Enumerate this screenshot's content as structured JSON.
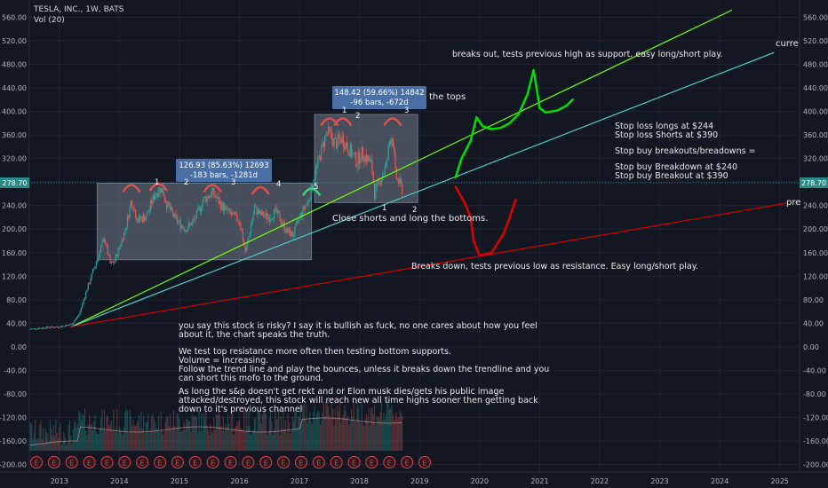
{
  "header": {
    "title": "TESLA, INC., 1W, BATS",
    "volume_label": "Vol (20)"
  },
  "price_tag": {
    "value": 278.7,
    "label": "278.70"
  },
  "chart_data": {
    "type": "candlestick",
    "x_tick_labels": [
      "2013",
      "2014",
      "2015",
      "2016",
      "2017",
      "2018",
      "2019",
      "2020",
      "2021",
      "2022",
      "2023",
      "2024",
      "2025"
    ],
    "y_tick_values": [
      560,
      520,
      480,
      440,
      400,
      360,
      320,
      280,
      240,
      200,
      160,
      120,
      80,
      40,
      0,
      -40,
      -80,
      -120,
      -160,
      -200
    ],
    "y_tick_labels": [
      "560.00",
      "520.00",
      "480.00",
      "440.00",
      "400.00",
      "360.00",
      "320.00",
      "280.00",
      "240.00",
      "200.00",
      "160.00",
      "120.00",
      "80.00",
      "40.00",
      "0.00",
      "-40.00",
      "-80.00",
      "-120.00",
      "-160.00",
      "-200.00"
    ],
    "ylim": [
      -210,
      572
    ],
    "price_path": [
      [
        2012.5,
        30
      ],
      [
        2012.8,
        33
      ],
      [
        2013.0,
        34
      ],
      [
        2013.2,
        38
      ],
      [
        2013.33,
        55
      ],
      [
        2013.45,
        95
      ],
      [
        2013.6,
        140
      ],
      [
        2013.75,
        185
      ],
      [
        2013.85,
        140
      ],
      [
        2013.92,
        145
      ],
      [
        2014.1,
        200
      ],
      [
        2014.2,
        250
      ],
      [
        2014.3,
        215
      ],
      [
        2014.45,
        222
      ],
      [
        2014.6,
        262
      ],
      [
        2014.7,
        270
      ],
      [
        2014.8,
        240
      ],
      [
        2014.95,
        215
      ],
      [
        2015.1,
        200
      ],
      [
        2015.25,
        215
      ],
      [
        2015.4,
        250
      ],
      [
        2015.55,
        262
      ],
      [
        2015.7,
        240
      ],
      [
        2015.85,
        225
      ],
      [
        2016.0,
        215
      ],
      [
        2016.1,
        160
      ],
      [
        2016.25,
        235
      ],
      [
        2016.35,
        225
      ],
      [
        2016.5,
        220
      ],
      [
        2016.6,
        230
      ],
      [
        2016.8,
        195
      ],
      [
        2016.9,
        190
      ],
      [
        2017.0,
        220
      ],
      [
        2017.15,
        250
      ],
      [
        2017.3,
        310
      ],
      [
        2017.45,
        365
      ],
      [
        2017.5,
        360
      ],
      [
        2017.6,
        345
      ],
      [
        2017.7,
        355
      ],
      [
        2017.8,
        340
      ],
      [
        2017.95,
        315
      ],
      [
        2018.05,
        330
      ],
      [
        2018.2,
        310
      ],
      [
        2018.25,
        260
      ],
      [
        2018.35,
        285
      ],
      [
        2018.45,
        310
      ],
      [
        2018.5,
        350
      ],
      [
        2018.55,
        360
      ],
      [
        2018.6,
        290
      ],
      [
        2018.68,
        275
      ],
      [
        2018.72,
        265
      ]
    ],
    "series": [
      {
        "name": "channel-upper",
        "points": [
          [
            2014.0,
            278
          ],
          [
            2018.97,
            278
          ]
        ]
      },
      {
        "name": "channel-lower",
        "points": [
          [
            2014.0,
            148
          ],
          [
            2017.2,
            148
          ]
        ]
      },
      {
        "name": "trend-green",
        "points": [
          [
            2013.2,
            34
          ],
          [
            2024.2,
            572
          ]
        ]
      },
      {
        "name": "trend-cyan",
        "points": [
          [
            2013.2,
            34
          ],
          [
            2024.9,
            500
          ]
        ]
      },
      {
        "name": "trend-red",
        "points": [
          [
            2013.2,
            34
          ],
          [
            2025.1,
            244
          ]
        ]
      },
      {
        "name": "breakout-path",
        "points": [
          [
            2019.6,
            288
          ],
          [
            2019.7,
            320
          ],
          [
            2019.85,
            350
          ],
          [
            2019.95,
            390
          ],
          [
            2020.05,
            375
          ],
          [
            2020.2,
            370
          ],
          [
            2020.35,
            372
          ],
          [
            2020.5,
            380
          ],
          [
            2020.65,
            395
          ],
          [
            2020.8,
            430
          ],
          [
            2020.9,
            470
          ],
          [
            2020.95,
            440
          ],
          [
            2021.0,
            406
          ],
          [
            2021.1,
            398
          ],
          [
            2021.3,
            402
          ],
          [
            2021.45,
            410
          ],
          [
            2021.55,
            420
          ]
        ]
      },
      {
        "name": "breakdown-path",
        "points": [
          [
            2019.6,
            272
          ],
          [
            2019.75,
            245
          ],
          [
            2019.85,
            220
          ],
          [
            2019.9,
            180
          ],
          [
            2020.0,
            155
          ],
          [
            2020.2,
            160
          ],
          [
            2020.4,
            192
          ],
          [
            2020.5,
            220
          ],
          [
            2020.6,
            250
          ]
        ]
      }
    ],
    "rectangles": [
      {
        "name": "channel-box",
        "x0": 2013.63,
        "x1": 2017.2,
        "y_low": 148,
        "y_high": 278
      },
      {
        "name": "top-box",
        "x0": 2017.25,
        "x1": 2018.97,
        "y_low": 245,
        "y_high": 395
      }
    ]
  },
  "annotations": {
    "breaks_out": "breaks out, tests previous high as support. easy long/short play.",
    "breaks_down": "Breaks down, tests previous low as resistance. Easy long/short play.",
    "close_shorts": "Close shorts and long the bottoms.",
    "the_tops": "the tops",
    "current": "curre",
    "pre": "pre",
    "stop_loss_longs": "Stop loss longs at $244",
    "stop_loss_shorts": "Stop loss Shorts at $390",
    "stop_buy": "Stop buy breakouts/breadowns =",
    "stop_buy_breakdown": "Stop buy Breakdown at $240",
    "stop_buy_breakout": "Stop buy Breakout at $390",
    "measure1_line1": "126.93 (85.63%) 12693",
    "measure1_line2": "-183 bars, -1281d",
    "measure2_line1": "148.42 (59.66%) 14842",
    "measure2_line2": "-96 bars, -672d",
    "top_numbers": [
      "1",
      "2",
      "3",
      "4",
      "5"
    ],
    "box2_top_numbers": [
      "1",
      "2",
      "3"
    ],
    "box2_bottom_numbers": [
      "1",
      "2"
    ],
    "commentary": [
      "you say this stock is risky? I say it is bullish as fuck, no one cares about how you feel",
      "about it, the chart speaks the truth.",
      "",
      "We test top resistance more often then testing bottom supports.",
      "Volume = increasing.",
      "Follow the trend line and play the bounces, unless it breaks down the trendline and you",
      "can short this mofo to the ground.",
      "",
      "As long the s&p doesn't get rekt and or Elon musk dies/gets his public image",
      "attacked/destroyed, this stock will reach new all time highs sooner then getting back",
      "down to it's previous channel"
    ]
  },
  "earnings_marker": {
    "label": "E",
    "count": 23
  },
  "colors": {
    "background": "#131722",
    "grid": "#1f2330",
    "up": "#26a69a",
    "down": "#ef5350",
    "green_line": "#76ff03",
    "cyan_line": "#4dd0c8",
    "red_line": "#d50000",
    "box_fill": "#9aa6b8",
    "label_bg": "#4a6fa5",
    "price_tag_bg": "#2b8a84"
  }
}
